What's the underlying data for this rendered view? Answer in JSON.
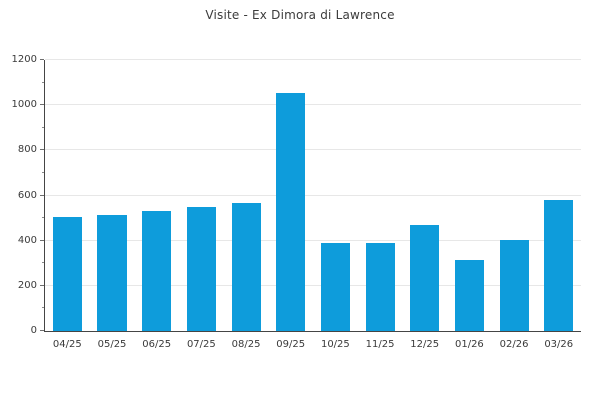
{
  "chart_data": {
    "type": "bar",
    "title": "Visite - Ex Dimora di Lawrence",
    "categories": [
      "04/25",
      "05/25",
      "06/25",
      "07/25",
      "08/25",
      "09/25",
      "10/25",
      "11/25",
      "12/25",
      "01/26",
      "02/26",
      "03/26"
    ],
    "values": [
      505,
      512,
      530,
      550,
      565,
      1055,
      388,
      391,
      470,
      313,
      403,
      582
    ],
    "xlabel": "",
    "ylabel": "",
    "ylim": [
      0,
      1200
    ],
    "ytick_step": 200,
    "ytick_labels": [
      "0",
      "200",
      "400",
      "600",
      "800",
      "1000",
      "1200"
    ],
    "minor_tick_step": 100,
    "grid": "horizontal-major",
    "legend": "none",
    "bar_color": "#0e9cdb",
    "grid_color": "#e7e7e7",
    "spine_color": "#454545",
    "text_color": "#3a3a3a"
  }
}
